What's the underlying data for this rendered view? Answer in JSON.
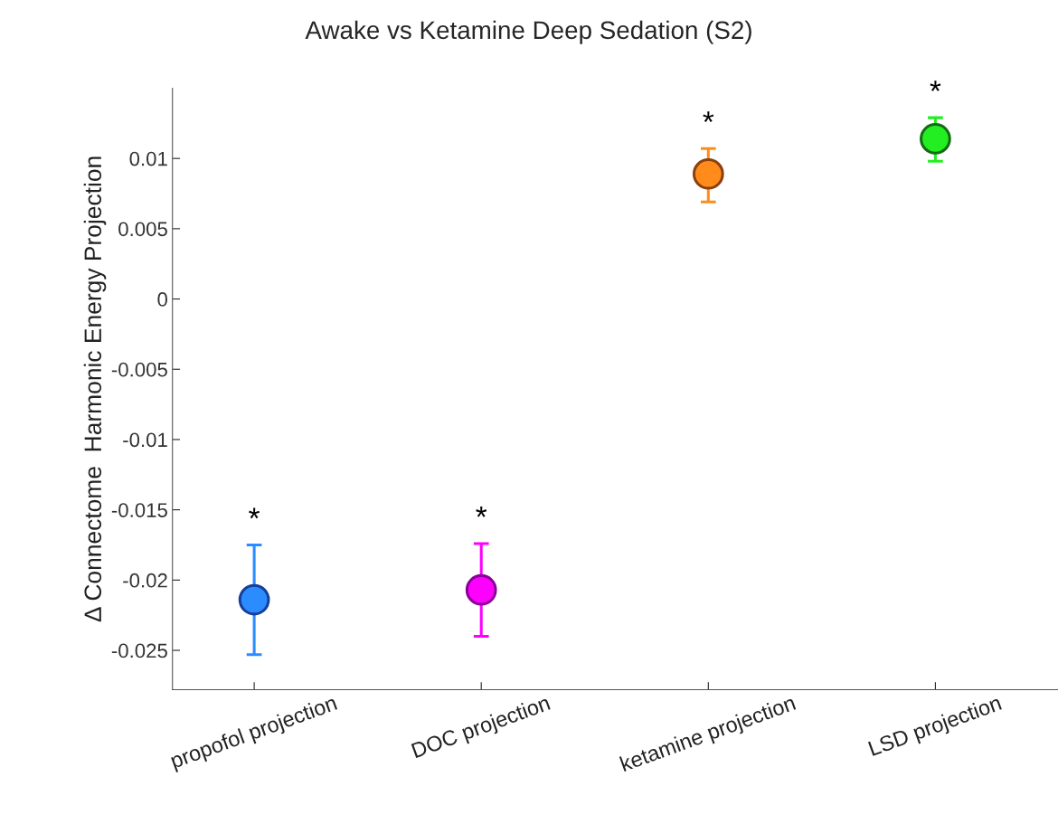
{
  "chart_data": {
    "type": "scatter",
    "title": "Awake vs Ketamine Deep Sedation (S2)",
    "ylabel": "Δ Connectome  Harmonic Energy Projection",
    "categories": [
      "propofol projection",
      "DOC projection",
      "ketamine projection",
      "LSD projection"
    ],
    "values": [
      -0.0214,
      -0.0207,
      0.0089,
      0.0114
    ],
    "errors": [
      [
        -0.0253,
        -0.0175
      ],
      [
        -0.024,
        -0.0174
      ],
      [
        0.0069,
        0.0107
      ],
      [
        0.0098,
        0.0129
      ]
    ],
    "colors": [
      "#2a8cff",
      "#ff00ff",
      "#ff8c1a",
      "#22ee22"
    ],
    "ylim": [
      -0.0278,
      0.015
    ],
    "yticks": [
      -0.025,
      -0.02,
      -0.015,
      -0.01,
      -0.005,
      0,
      0.005,
      0.01
    ],
    "marker": "circle",
    "grid": false,
    "legend": false,
    "annotations": [
      "*",
      "*",
      "*",
      "*"
    ]
  }
}
